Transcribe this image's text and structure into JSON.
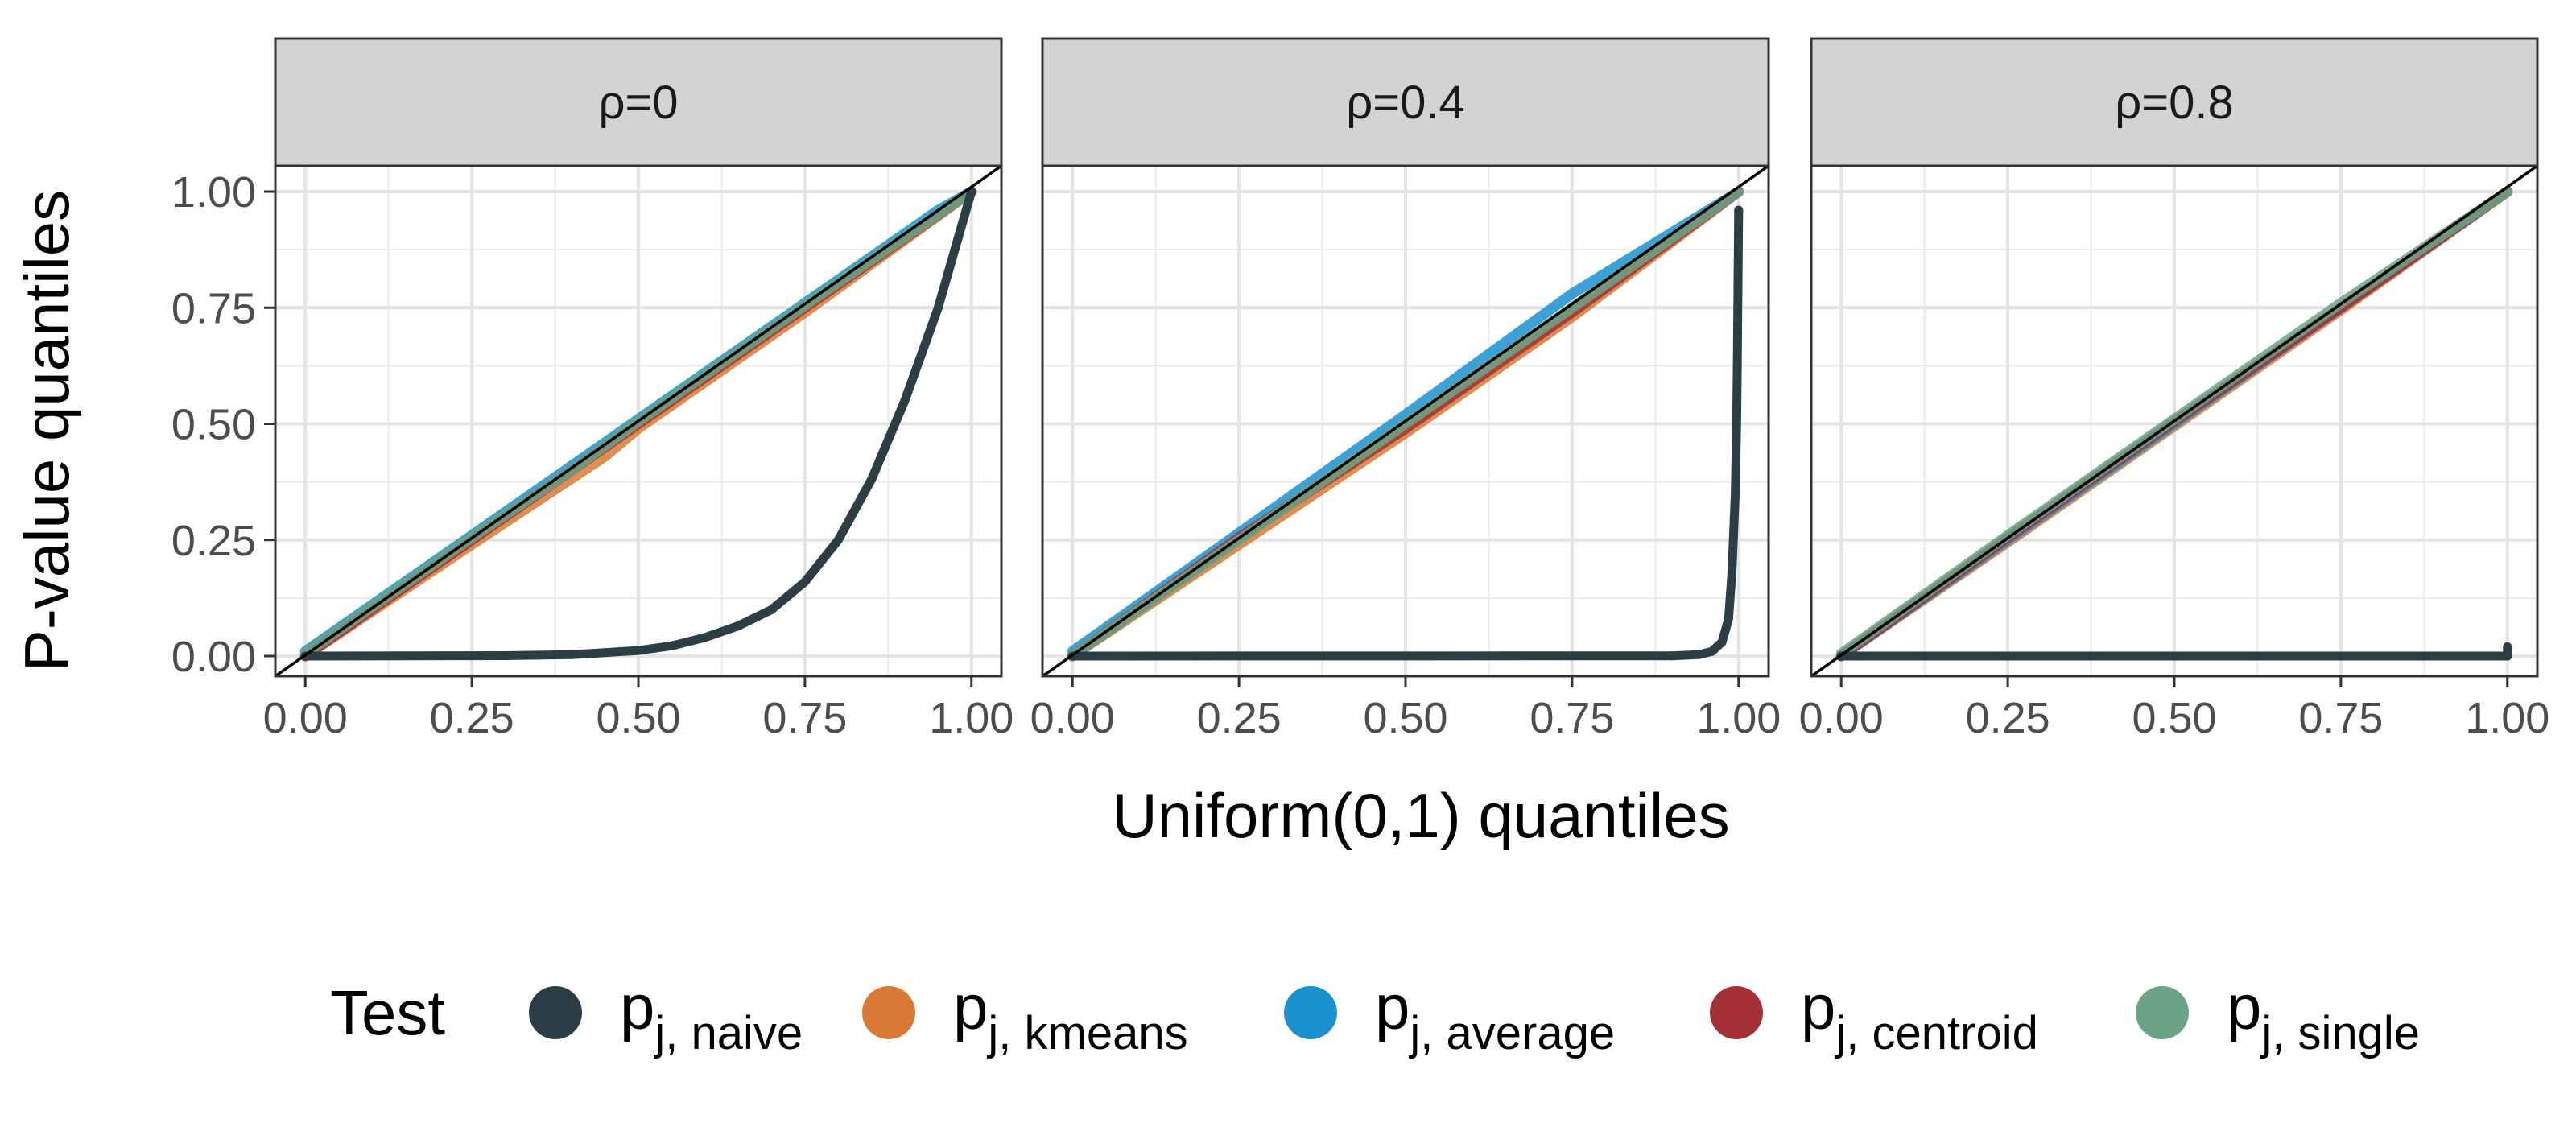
{
  "chart_data": {
    "type": "scatter",
    "subtype": "qq-plot facets",
    "xlabel": "Uniform(0,1) quantiles",
    "ylabel": "P-value quantiles",
    "xlim": [
      0,
      1
    ],
    "ylim": [
      0,
      1
    ],
    "x_ticks": [
      "0.00",
      "0.25",
      "0.50",
      "0.75",
      "1.00"
    ],
    "y_ticks": [
      "0.00",
      "0.25",
      "0.50",
      "0.75",
      "1.00"
    ],
    "reference_line": "y = x",
    "grid": true,
    "facets": [
      {
        "label": "ρ=0",
        "series": [
          {
            "name": "naive",
            "points": [
              [
                0,
                0
              ],
              [
                0.3,
                0.0008
              ],
              [
                0.4,
                0.003
              ],
              [
                0.5,
                0.012
              ],
              [
                0.55,
                0.022
              ],
              [
                0.6,
                0.04
              ],
              [
                0.65,
                0.065
              ],
              [
                0.7,
                0.1
              ],
              [
                0.75,
                0.16
              ],
              [
                0.8,
                0.25
              ],
              [
                0.85,
                0.38
              ],
              [
                0.9,
                0.55
              ],
              [
                0.95,
                0.75
              ],
              [
                0.98,
                0.9
              ],
              [
                1,
                1
              ]
            ]
          },
          {
            "name": "kmeans",
            "points": [
              [
                0,
                0
              ],
              [
                0.25,
                0.24
              ],
              [
                0.45,
                0.43
              ],
              [
                0.5,
                0.49
              ],
              [
                0.75,
                0.74
              ],
              [
                1,
                1
              ]
            ]
          },
          {
            "name": "average",
            "points": [
              [
                0,
                0.01
              ],
              [
                0.25,
                0.26
              ],
              [
                0.5,
                0.51
              ],
              [
                0.75,
                0.76
              ],
              [
                0.95,
                0.96
              ],
              [
                1,
                1
              ]
            ]
          },
          {
            "name": "centroid",
            "points": [
              [
                0,
                0
              ],
              [
                0.25,
                0.25
              ],
              [
                0.5,
                0.5
              ],
              [
                0.75,
                0.75
              ],
              [
                1,
                1
              ]
            ]
          },
          {
            "name": "single",
            "points": [
              [
                0,
                0.005
              ],
              [
                0.25,
                0.255
              ],
              [
                0.4,
                0.4
              ],
              [
                0.5,
                0.505
              ],
              [
                0.75,
                0.755
              ],
              [
                1,
                1
              ]
            ]
          }
        ]
      },
      {
        "label": "ρ=0.4",
        "series": [
          {
            "name": "naive",
            "points": [
              [
                0,
                0
              ],
              [
                0.9,
                0.0005
              ],
              [
                0.94,
                0.003
              ],
              [
                0.96,
                0.01
              ],
              [
                0.975,
                0.03
              ],
              [
                0.985,
                0.08
              ],
              [
                0.99,
                0.18
              ],
              [
                0.995,
                0.35
              ],
              [
                0.997,
                0.5
              ],
              [
                0.998,
                0.62
              ],
              [
                0.999,
                0.78
              ],
              [
                1,
                0.96
              ]
            ]
          },
          {
            "name": "kmeans",
            "points": [
              [
                0,
                0
              ],
              [
                0.25,
                0.24
              ],
              [
                0.5,
                0.48
              ],
              [
                0.75,
                0.73
              ],
              [
                1,
                1
              ]
            ]
          },
          {
            "name": "average",
            "points": [
              [
                0,
                0.01
              ],
              [
                0.25,
                0.265
              ],
              [
                0.5,
                0.52
              ],
              [
                0.75,
                0.78
              ],
              [
                1,
                1
              ]
            ]
          },
          {
            "name": "centroid",
            "points": [
              [
                0,
                0
              ],
              [
                0.25,
                0.255
              ],
              [
                0.5,
                0.49
              ],
              [
                0.75,
                0.74
              ],
              [
                1,
                1
              ]
            ]
          },
          {
            "name": "single",
            "points": [
              [
                0,
                0
              ],
              [
                0.25,
                0.25
              ],
              [
                0.5,
                0.5
              ],
              [
                0.75,
                0.75
              ],
              [
                1,
                1
              ]
            ]
          }
        ]
      },
      {
        "label": "ρ=0.8",
        "series": [
          {
            "name": "naive",
            "points": [
              [
                0,
                0
              ],
              [
                0.99,
                0
              ],
              [
                1,
                0
              ],
              [
                1,
                0.02
              ]
            ]
          },
          {
            "name": "kmeans",
            "points": [
              [
                0,
                0
              ],
              [
                0.25,
                0.245
              ],
              [
                0.5,
                0.495
              ],
              [
                0.75,
                0.745
              ],
              [
                1,
                1
              ]
            ]
          },
          {
            "name": "average",
            "points": [
              [
                0,
                0
              ],
              [
                0.25,
                0.25
              ],
              [
                0.5,
                0.5
              ],
              [
                0.75,
                0.75
              ],
              [
                1,
                1
              ]
            ]
          },
          {
            "name": "centroid",
            "points": [
              [
                0,
                0
              ],
              [
                0.25,
                0.255
              ],
              [
                0.5,
                0.505
              ],
              [
                0.75,
                0.75
              ],
              [
                1,
                1
              ]
            ]
          },
          {
            "name": "single",
            "points": [
              [
                0,
                0.005
              ],
              [
                0.25,
                0.26
              ],
              [
                0.5,
                0.51
              ],
              [
                0.75,
                0.76
              ],
              [
                1,
                1
              ]
            ]
          }
        ]
      }
    ],
    "legend": {
      "title": "Test",
      "position": "bottom",
      "entries": [
        {
          "key": "naive",
          "symbol": "p",
          "subscript": "j, naive",
          "color": "#2c3e45"
        },
        {
          "key": "kmeans",
          "symbol": "p",
          "subscript": "j, kmeans",
          "color": "#d97a34"
        },
        {
          "key": "average",
          "symbol": "p",
          "subscript": "j, average",
          "color": "#1a90cf"
        },
        {
          "key": "centroid",
          "symbol": "p",
          "subscript": "j, centroid",
          "color": "#a33034"
        },
        {
          "key": "single",
          "symbol": "p",
          "subscript": "j, single",
          "color": "#6aa485"
        }
      ]
    }
  }
}
